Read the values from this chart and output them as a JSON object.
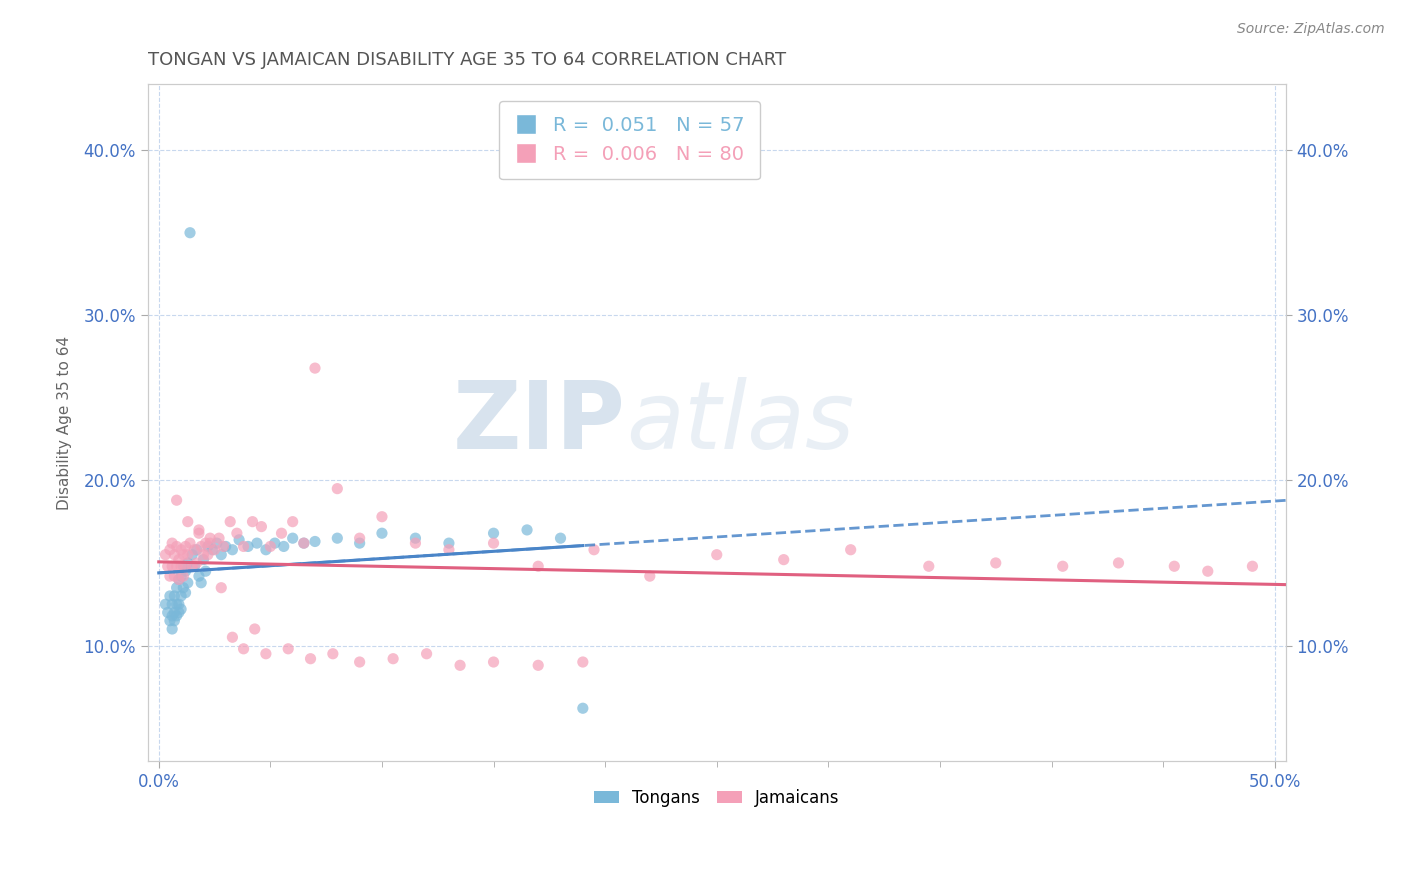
{
  "title": "TONGAN VS JAMAICAN DISABILITY AGE 35 TO 64 CORRELATION CHART",
  "source": "Source: ZipAtlas.com",
  "ylabel": "Disability Age 35 to 64",
  "xlim": [
    -0.005,
    0.505
  ],
  "ylim": [
    0.03,
    0.44
  ],
  "xticks": [
    0.0,
    0.5
  ],
  "yticks": [
    0.1,
    0.2,
    0.3,
    0.4
  ],
  "xticklabels": [
    "0.0%",
    "50.0%"
  ],
  "yticklabels": [
    "10.0%",
    "20.0%",
    "30.0%",
    "40.0%"
  ],
  "tongan_color": "#7ab8d9",
  "jamaican_color": "#f4a0b8",
  "tongan_line_color": "#4a85c8",
  "jamaican_line_color": "#e06080",
  "tongan_R": 0.051,
  "tongan_N": 57,
  "jamaican_R": 0.006,
  "jamaican_N": 80,
  "background_color": "#ffffff",
  "grid_color": "#c8d8ee",
  "axis_label_color": "#4472c4",
  "title_color": "#555555",
  "watermark_zip": "ZIP",
  "watermark_atlas": "atlas",
  "source_text": "Source: ZipAtlas.com",
  "tongan_x": [
    0.003,
    0.004,
    0.005,
    0.005,
    0.006,
    0.006,
    0.006,
    0.007,
    0.007,
    0.007,
    0.008,
    0.008,
    0.008,
    0.009,
    0.009,
    0.009,
    0.01,
    0.01,
    0.01,
    0.011,
    0.011,
    0.012,
    0.012,
    0.013,
    0.013,
    0.014,
    0.015,
    0.016,
    0.017,
    0.018,
    0.019,
    0.02,
    0.021,
    0.022,
    0.024,
    0.026,
    0.028,
    0.03,
    0.033,
    0.036,
    0.04,
    0.044,
    0.048,
    0.052,
    0.056,
    0.06,
    0.065,
    0.07,
    0.08,
    0.09,
    0.1,
    0.115,
    0.13,
    0.15,
    0.165,
    0.18,
    0.19
  ],
  "tongan_y": [
    0.125,
    0.12,
    0.13,
    0.115,
    0.125,
    0.118,
    0.11,
    0.13,
    0.12,
    0.115,
    0.135,
    0.125,
    0.118,
    0.14,
    0.125,
    0.12,
    0.142,
    0.13,
    0.122,
    0.148,
    0.135,
    0.145,
    0.132,
    0.15,
    0.138,
    0.35,
    0.155,
    0.148,
    0.158,
    0.142,
    0.138,
    0.152,
    0.145,
    0.16,
    0.158,
    0.162,
    0.155,
    0.16,
    0.158,
    0.164,
    0.16,
    0.162,
    0.158,
    0.162,
    0.16,
    0.165,
    0.162,
    0.163,
    0.165,
    0.162,
    0.168,
    0.165,
    0.162,
    0.168,
    0.17,
    0.165,
    0.062
  ],
  "jamaican_x": [
    0.003,
    0.004,
    0.005,
    0.005,
    0.006,
    0.006,
    0.007,
    0.007,
    0.008,
    0.008,
    0.009,
    0.009,
    0.01,
    0.01,
    0.011,
    0.011,
    0.012,
    0.012,
    0.013,
    0.014,
    0.015,
    0.016,
    0.017,
    0.018,
    0.019,
    0.02,
    0.021,
    0.022,
    0.023,
    0.025,
    0.027,
    0.029,
    0.032,
    0.035,
    0.038,
    0.042,
    0.046,
    0.05,
    0.055,
    0.06,
    0.065,
    0.07,
    0.08,
    0.09,
    0.1,
    0.115,
    0.13,
    0.15,
    0.17,
    0.195,
    0.22,
    0.25,
    0.28,
    0.31,
    0.345,
    0.375,
    0.405,
    0.43,
    0.455,
    0.47,
    0.49,
    0.008,
    0.013,
    0.018,
    0.023,
    0.028,
    0.033,
    0.038,
    0.043,
    0.048,
    0.058,
    0.068,
    0.078,
    0.09,
    0.105,
    0.12,
    0.135,
    0.15,
    0.17,
    0.19
  ],
  "jamaican_y": [
    0.155,
    0.148,
    0.158,
    0.142,
    0.162,
    0.148,
    0.155,
    0.142,
    0.16,
    0.148,
    0.152,
    0.14,
    0.158,
    0.148,
    0.155,
    0.142,
    0.16,
    0.148,
    0.155,
    0.162,
    0.148,
    0.158,
    0.15,
    0.168,
    0.16,
    0.155,
    0.162,
    0.155,
    0.162,
    0.158,
    0.165,
    0.16,
    0.175,
    0.168,
    0.16,
    0.175,
    0.172,
    0.16,
    0.168,
    0.175,
    0.162,
    0.268,
    0.195,
    0.165,
    0.178,
    0.162,
    0.158,
    0.162,
    0.148,
    0.158,
    0.142,
    0.155,
    0.152,
    0.158,
    0.148,
    0.15,
    0.148,
    0.15,
    0.148,
    0.145,
    0.148,
    0.188,
    0.175,
    0.17,
    0.165,
    0.135,
    0.105,
    0.098,
    0.11,
    0.095,
    0.098,
    0.092,
    0.095,
    0.09,
    0.092,
    0.095,
    0.088,
    0.09,
    0.088,
    0.09
  ]
}
